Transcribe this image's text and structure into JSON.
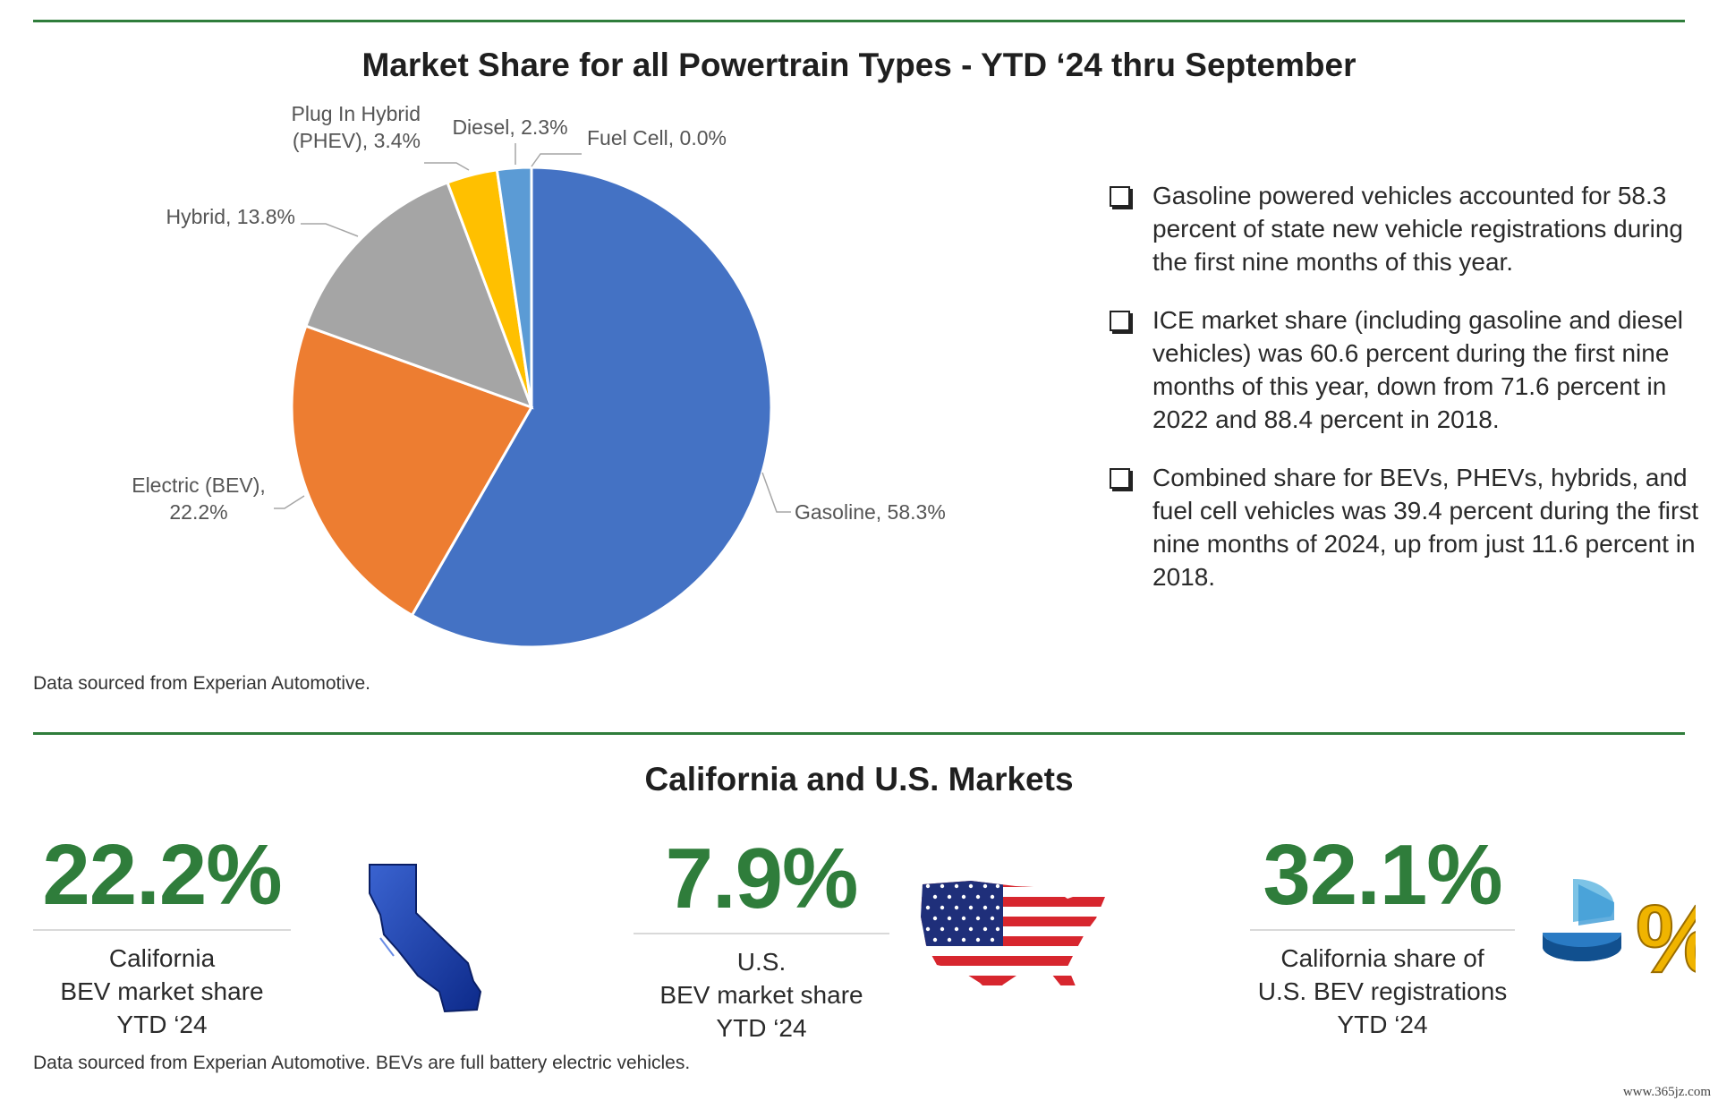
{
  "chart_data": {
    "type": "pie",
    "title": "Market Share for all Powertrain Types - YTD ‘24 thru September",
    "slices": [
      {
        "name": "Gasoline",
        "value": 58.3,
        "color": "#4472c4",
        "label_lines": [
          "Gasoline, 58.3%"
        ]
      },
      {
        "name": "Electric (BEV)",
        "value": 22.2,
        "color": "#ed7d31",
        "label_lines": [
          "Electric (BEV),",
          "22.2%"
        ]
      },
      {
        "name": "Hybrid",
        "value": 13.8,
        "color": "#a5a5a5",
        "label_lines": [
          "Hybrid, 13.8%"
        ]
      },
      {
        "name": "Plug In Hybrid (PHEV)",
        "value": 3.4,
        "color": "#ffc000",
        "label_lines": [
          "Plug In Hybrid",
          "(PHEV), 3.4%"
        ]
      },
      {
        "name": "Diesel",
        "value": 2.3,
        "color": "#5b9bd5",
        "label_lines": [
          "Diesel, 2.3%"
        ]
      },
      {
        "name": "Fuel Cell",
        "value": 0.0,
        "color": "#70ad47",
        "label_lines": [
          "Fuel Cell, 0.0%"
        ]
      }
    ]
  },
  "bullets": [
    "Gasoline powered vehicles accounted for 58.3 percent of state new vehicle registrations during the first nine months of this year.",
    "ICE market share (including gasoline and diesel vehicles) was 60.6 percent during the first nine months of this year, down from 71.6 percent in 2022 and 88.4 percent in 2018.",
    "Combined share for BEVs, PHEVs, hybrids, and fuel cell vehicles was 39.4 percent during the first nine months of 2024, up from just 11.6 percent in 2018."
  ],
  "source_top": "Data sourced from Experian Automotive.",
  "markets": {
    "title": "California and U.S. Markets",
    "stats": [
      {
        "value": "22.2%",
        "label": [
          "California",
          "BEV market share",
          "YTD ‘24"
        ],
        "icon": "california-map-icon"
      },
      {
        "value": "7.9%",
        "label": [
          "U.S.",
          "BEV market share",
          "YTD ‘24"
        ],
        "icon": "us-flag-map-icon"
      },
      {
        "value": "32.1%",
        "label": [
          "California share of",
          "U.S. BEV registrations",
          "YTD ‘24"
        ],
        "icon": "percent-pie-icon"
      }
    ],
    "source": "Data sourced from Experian Automotive. BEVs are full battery electric vehicles."
  },
  "watermark": "www.365jz.com",
  "colors": {
    "accent_green": "#2f7d3b",
    "rule": "#2f7d3b"
  }
}
